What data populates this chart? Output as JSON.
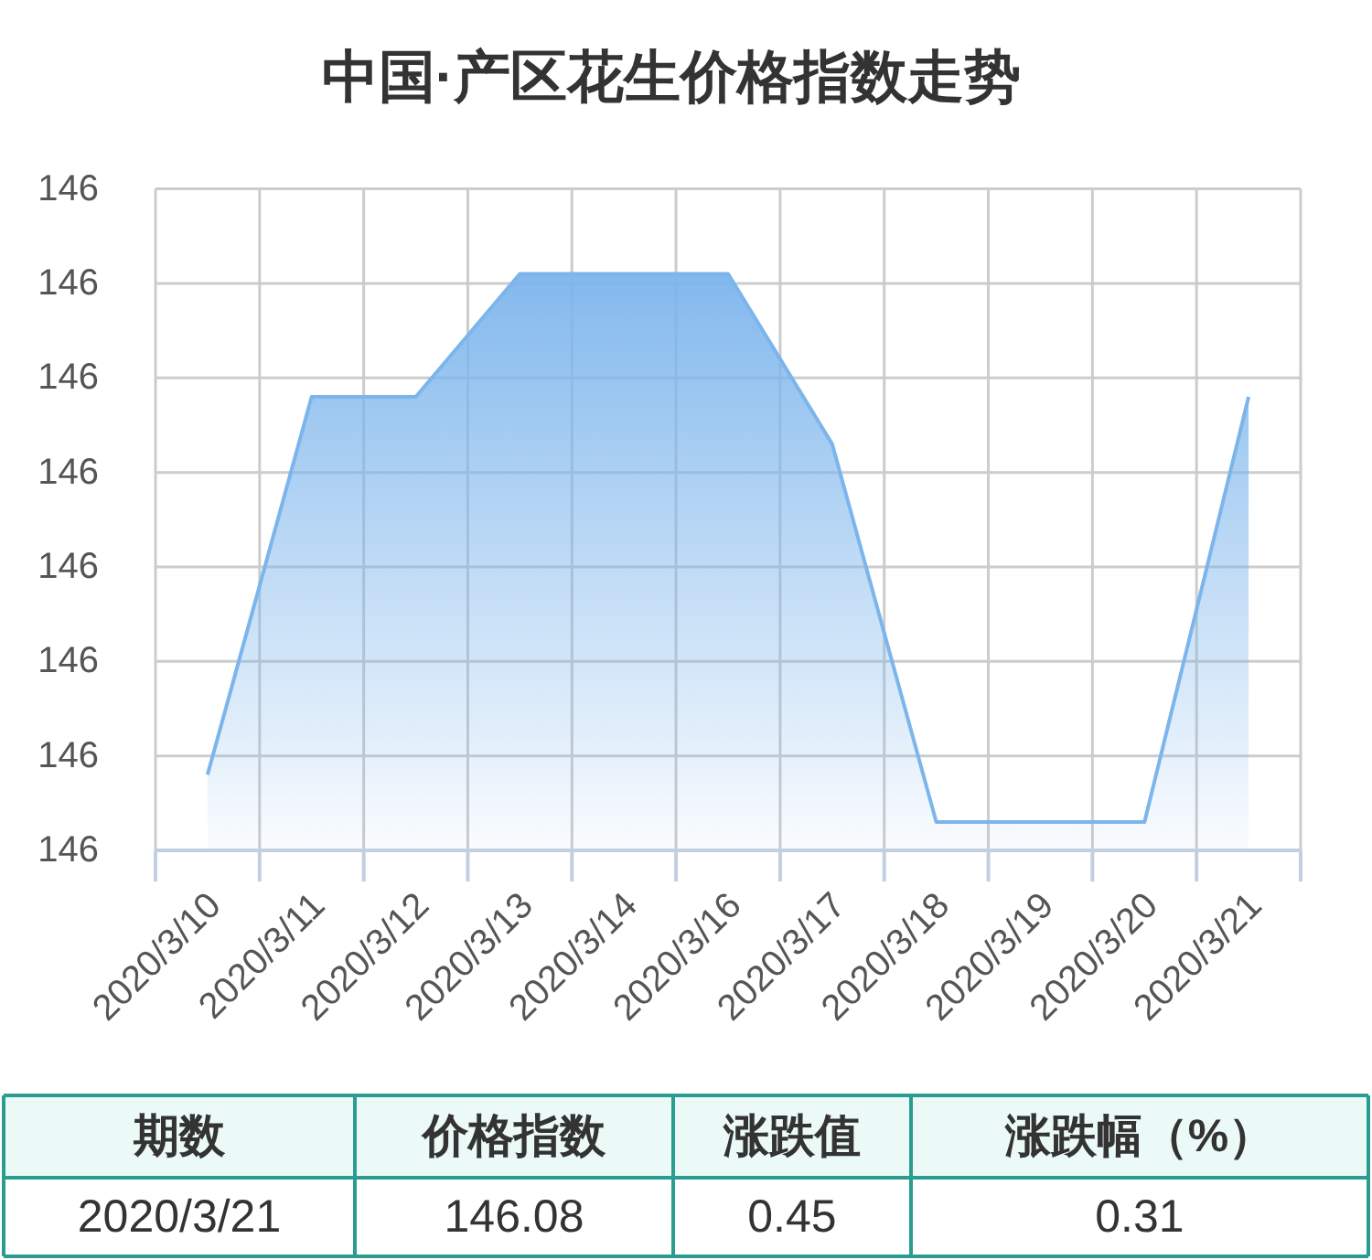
{
  "chart_data": {
    "type": "area",
    "title": "中国·产区花生价格指数走势",
    "categories": [
      "2020/3/10",
      "2020/3/11",
      "2020/3/12",
      "2020/3/13",
      "2020/3/14",
      "2020/3/16",
      "2020/3/17",
      "2020/3/18",
      "2020/3/19",
      "2020/3/20",
      "2020/3/21"
    ],
    "values": [
      145.68,
      146.08,
      146.08,
      146.21,
      146.21,
      146.21,
      146.03,
      145.63,
      145.63,
      145.63,
      146.08
    ],
    "color": "#7cb5ec",
    "ylim": [
      145.6,
      146.3
    ],
    "yticks": [
      {
        "value": 145.6,
        "label": "146"
      },
      {
        "value": 145.7,
        "label": "146"
      },
      {
        "value": 145.8,
        "label": "146"
      },
      {
        "value": 145.9,
        "label": "146"
      },
      {
        "value": 146.0,
        "label": "146"
      },
      {
        "value": 146.1,
        "label": "146"
      },
      {
        "value": 146.2,
        "label": "146"
      },
      {
        "value": 146.3,
        "label": "146"
      }
    ],
    "grid": true,
    "annotations": [
      "期数",
      "价格指数",
      "涨跌值",
      "涨跌幅（%）",
      "2020/3/21",
      "146.08",
      "0.45",
      "0.31"
    ]
  }
}
